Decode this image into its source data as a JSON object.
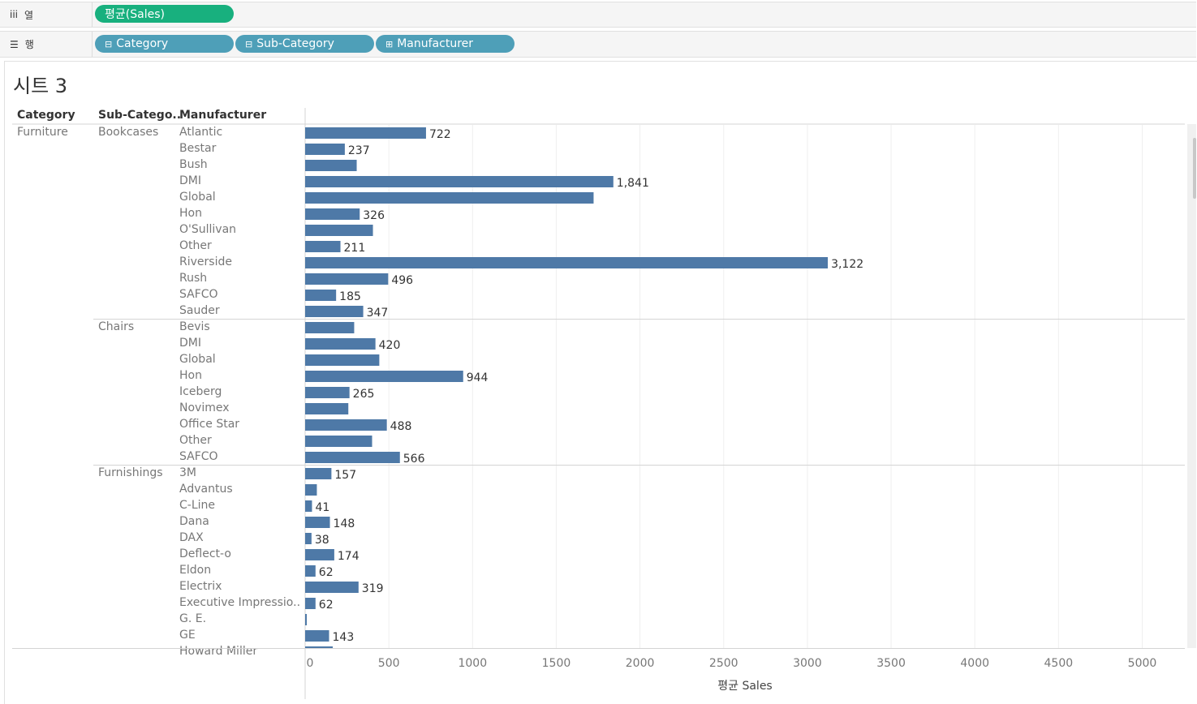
{
  "shelves": {
    "columns": {
      "label": "열",
      "icon": "columns-icon",
      "pills": [
        {
          "label": "평균(Sales)",
          "color": "#18b07e"
        }
      ]
    },
    "rows": {
      "label": "행",
      "icon": "rows-icon",
      "pills": [
        {
          "label": "Category",
          "color": "#4e9fb8",
          "prefix": "⊟"
        },
        {
          "label": "Sub-Category",
          "color": "#4e9fb8",
          "prefix": "⊟"
        },
        {
          "label": "Manufacturer",
          "color": "#4e9fb8",
          "prefix": "⊞"
        }
      ]
    }
  },
  "sheet_title": "시트 3",
  "headers": {
    "category": "Category",
    "subcategory": "Sub-Catego..",
    "manufacturer": "Manufacturer"
  },
  "chart_data": {
    "type": "bar",
    "orientation": "horizontal",
    "title": "시트 3",
    "xlabel": "평균 Sales",
    "xlim": [
      0,
      5200
    ],
    "xticks": [
      "0",
      "500",
      "1000",
      "1500",
      "2000",
      "2500",
      "3000",
      "3500",
      "4000",
      "4500",
      "5000"
    ],
    "bar_color": "#4e79a7",
    "groups": [
      {
        "category": "Furniture",
        "subcategory": "Bookcases",
        "rows": [
          {
            "manufacturer": "Atlantic",
            "value": 722,
            "label": "722"
          },
          {
            "manufacturer": "Bestar",
            "value": 237,
            "label": "237"
          },
          {
            "manufacturer": "Bush",
            "value": 308,
            "label": ""
          },
          {
            "manufacturer": "DMI",
            "value": 1841,
            "label": "1,841"
          },
          {
            "manufacturer": "Global",
            "value": 1723,
            "label": ""
          },
          {
            "manufacturer": "Hon",
            "value": 326,
            "label": "326"
          },
          {
            "manufacturer": "O'Sullivan",
            "value": 405,
            "label": ""
          },
          {
            "manufacturer": "Other",
            "value": 211,
            "label": "211"
          },
          {
            "manufacturer": "Riverside",
            "value": 3122,
            "label": "3,122"
          },
          {
            "manufacturer": "Rush",
            "value": 496,
            "label": "496"
          },
          {
            "manufacturer": "SAFCO",
            "value": 185,
            "label": "185"
          },
          {
            "manufacturer": "Sauder",
            "value": 347,
            "label": "347"
          }
        ]
      },
      {
        "category": "",
        "subcategory": "Chairs",
        "rows": [
          {
            "manufacturer": "Bevis",
            "value": 293,
            "label": ""
          },
          {
            "manufacturer": "DMI",
            "value": 420,
            "label": "420"
          },
          {
            "manufacturer": "Global",
            "value": 443,
            "label": ""
          },
          {
            "manufacturer": "Hon",
            "value": 944,
            "label": "944"
          },
          {
            "manufacturer": "Iceberg",
            "value": 265,
            "label": "265"
          },
          {
            "manufacturer": "Novimex",
            "value": 258,
            "label": ""
          },
          {
            "manufacturer": "Office Star",
            "value": 488,
            "label": "488"
          },
          {
            "manufacturer": "Other",
            "value": 400,
            "label": ""
          },
          {
            "manufacturer": "SAFCO",
            "value": 566,
            "label": "566"
          }
        ]
      },
      {
        "category": "",
        "subcategory": "Furnishings",
        "rows": [
          {
            "manufacturer": "3M",
            "value": 157,
            "label": "157"
          },
          {
            "manufacturer": "Advantus",
            "value": 70,
            "label": ""
          },
          {
            "manufacturer": "C-Line",
            "value": 41,
            "label": "41"
          },
          {
            "manufacturer": "Dana",
            "value": 148,
            "label": "148"
          },
          {
            "manufacturer": "DAX",
            "value": 38,
            "label": "38"
          },
          {
            "manufacturer": "Deflect-o",
            "value": 174,
            "label": "174"
          },
          {
            "manufacturer": "Eldon",
            "value": 62,
            "label": "62"
          },
          {
            "manufacturer": "Electrix",
            "value": 319,
            "label": "319"
          },
          {
            "manufacturer": "Executive Impressio..",
            "value": 62,
            "label": "62"
          },
          {
            "manufacturer": "G. E.",
            "value": 10,
            "label": ""
          },
          {
            "manufacturer": "GE",
            "value": 143,
            "label": "143"
          },
          {
            "manufacturer": "Howard Miller",
            "value": 165,
            "label": ""
          }
        ]
      }
    ]
  }
}
